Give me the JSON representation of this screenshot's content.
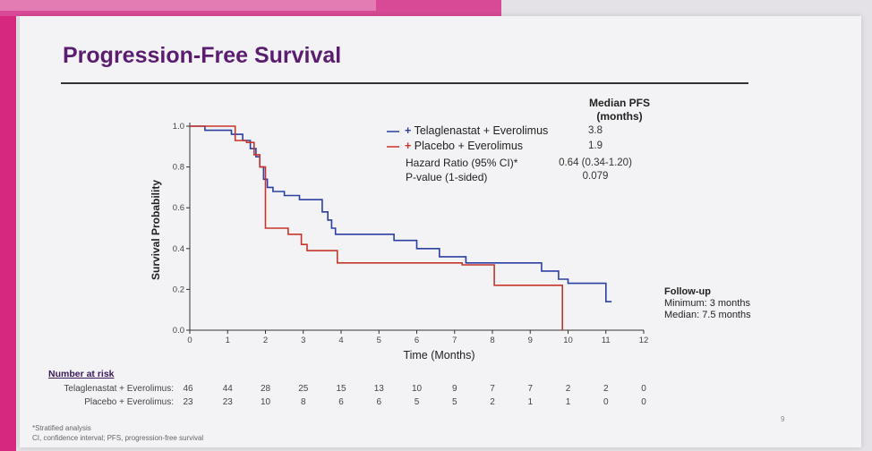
{
  "slide_title": "Progression-Free Survival",
  "page_number": "9",
  "chart_data": {
    "type": "line",
    "title": "",
    "xlabel": "Time (Months)",
    "ylabel": "Survival Probability",
    "xlim": [
      0,
      12
    ],
    "ylim": [
      0,
      1
    ],
    "xticks": [
      "0",
      "1",
      "2",
      "3",
      "4",
      "5",
      "6",
      "7",
      "8",
      "9",
      "10",
      "11",
      "12"
    ],
    "yticks": [
      "0.0",
      "0.2",
      "0.4",
      "0.6",
      "0.8",
      "1.0"
    ],
    "series": [
      {
        "name": "Telaglenastat + Everolimus",
        "color": "#2b3fa3",
        "points": [
          [
            0,
            1.0
          ],
          [
            0.4,
            1.0
          ],
          [
            0.4,
            0.98
          ],
          [
            1.1,
            0.98
          ],
          [
            1.1,
            0.96
          ],
          [
            1.4,
            0.96
          ],
          [
            1.4,
            0.93
          ],
          [
            1.6,
            0.93
          ],
          [
            1.6,
            0.89
          ],
          [
            1.75,
            0.89
          ],
          [
            1.75,
            0.85
          ],
          [
            1.85,
            0.85
          ],
          [
            1.85,
            0.8
          ],
          [
            1.95,
            0.8
          ],
          [
            1.95,
            0.74
          ],
          [
            2.05,
            0.74
          ],
          [
            2.05,
            0.7
          ],
          [
            2.2,
            0.7
          ],
          [
            2.2,
            0.68
          ],
          [
            2.5,
            0.68
          ],
          [
            2.5,
            0.66
          ],
          [
            2.9,
            0.66
          ],
          [
            2.9,
            0.64
          ],
          [
            3.5,
            0.64
          ],
          [
            3.5,
            0.58
          ],
          [
            3.65,
            0.58
          ],
          [
            3.65,
            0.54
          ],
          [
            3.75,
            0.54
          ],
          [
            3.75,
            0.5
          ],
          [
            3.85,
            0.5
          ],
          [
            3.85,
            0.47
          ],
          [
            5.4,
            0.47
          ],
          [
            5.4,
            0.44
          ],
          [
            6.0,
            0.44
          ],
          [
            6.0,
            0.4
          ],
          [
            6.6,
            0.4
          ],
          [
            6.6,
            0.36
          ],
          [
            7.3,
            0.36
          ],
          [
            7.3,
            0.33
          ],
          [
            9.3,
            0.33
          ],
          [
            9.3,
            0.29
          ],
          [
            9.75,
            0.29
          ],
          [
            9.75,
            0.25
          ],
          [
            10.0,
            0.25
          ],
          [
            10.0,
            0.23
          ],
          [
            11.0,
            0.23
          ],
          [
            11.0,
            0.14
          ],
          [
            11.15,
            0.14
          ]
        ]
      },
      {
        "name": "Placebo + Everolimus",
        "color": "#c8352a",
        "points": [
          [
            0,
            1.0
          ],
          [
            1.2,
            1.0
          ],
          [
            1.2,
            0.93
          ],
          [
            1.5,
            0.93
          ],
          [
            1.5,
            0.92
          ],
          [
            1.7,
            0.92
          ],
          [
            1.7,
            0.86
          ],
          [
            1.85,
            0.86
          ],
          [
            1.85,
            0.8
          ],
          [
            2.0,
            0.8
          ],
          [
            2.0,
            0.5
          ],
          [
            2.6,
            0.5
          ],
          [
            2.6,
            0.47
          ],
          [
            2.95,
            0.47
          ],
          [
            2.95,
            0.42
          ],
          [
            3.1,
            0.42
          ],
          [
            3.1,
            0.39
          ],
          [
            3.9,
            0.39
          ],
          [
            3.9,
            0.33
          ],
          [
            7.2,
            0.33
          ],
          [
            7.2,
            0.32
          ],
          [
            8.05,
            0.32
          ],
          [
            8.05,
            0.22
          ],
          [
            9.85,
            0.22
          ],
          [
            9.85,
            0.0
          ]
        ]
      }
    ],
    "legend": {
      "header": [
        "Median PFS",
        "(months)"
      ],
      "rows": [
        {
          "label": "Telaglenastat + Everolimus",
          "value": "3.8"
        },
        {
          "label": "Placebo + Everolimus",
          "value": "1.9"
        },
        {
          "label": "Hazard Ratio (95% CI)*",
          "value": "0.64 (0.34-1.20)"
        },
        {
          "label": "P-value (1-sided)",
          "value": "0.079"
        }
      ]
    }
  },
  "follow_up": {
    "heading": "Follow-up",
    "minimum": "Minimum: 3 months",
    "median": "Median: 7.5 months"
  },
  "number_at_risk": {
    "heading": "Number at risk",
    "rows": [
      {
        "label": "Telaglenastat + Everolimus:",
        "values": [
          "46",
          "44",
          "28",
          "25",
          "15",
          "13",
          "10",
          "9",
          "7",
          "7",
          "2",
          "2",
          "0"
        ]
      },
      {
        "label": "Placebo + Everolimus:",
        "values": [
          "23",
          "23",
          "10",
          "8",
          "6",
          "6",
          "5",
          "5",
          "2",
          "1",
          "1",
          "0",
          "0"
        ]
      }
    ]
  },
  "footnotes": {
    "line1": "*Stratified analysis",
    "line2": "CI, confidence interval; PFS, progression-free survival"
  }
}
